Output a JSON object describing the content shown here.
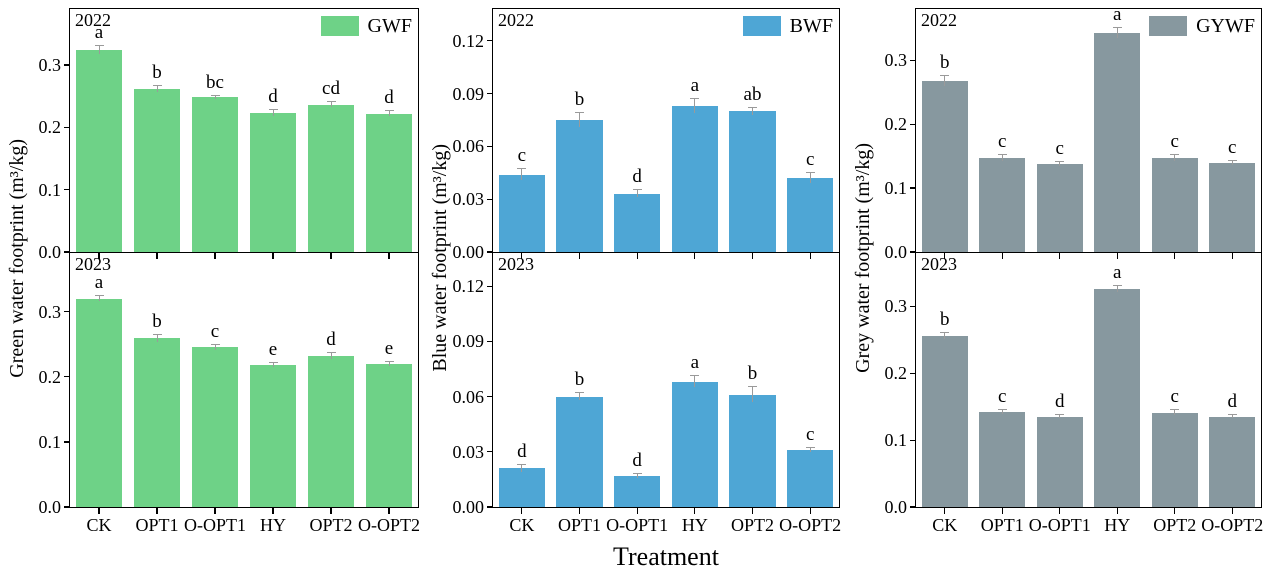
{
  "figure": {
    "xlabel": "Treatment",
    "categories": [
      "CK",
      "OPT1",
      "O-OPT1",
      "HY",
      "OPT2",
      "O-OPT2"
    ],
    "background": "#ffffff",
    "axis_color": "#000000",
    "error_bar_color": "#9a9a9a"
  },
  "chart_data": [
    {
      "type": "bar",
      "id": "green-water-footprint",
      "legend": "GWF",
      "color": "#6ed287",
      "ylabel": "Green water footprint (m³/kg)",
      "ylim": [
        0,
        0.39
      ],
      "grid": false,
      "legend_position": "top-right",
      "ytick_values": [
        0.0,
        0.1,
        0.2,
        0.3
      ],
      "ytick_labels": [
        "0.0",
        "0.1",
        "0.2",
        "0.3"
      ],
      "categories": [
        "CK",
        "OPT1",
        "O-OPT1",
        "HY",
        "OPT2",
        "O-OPT2"
      ],
      "panels": [
        {
          "year": "2022",
          "values": [
            0.324,
            0.262,
            0.248,
            0.223,
            0.236,
            0.222
          ],
          "errors": [
            0.006,
            0.005,
            0.003,
            0.005,
            0.004,
            0.004
          ],
          "letters": [
            "a",
            "b",
            "bc",
            "d",
            "cd",
            "d"
          ]
        },
        {
          "year": "2023",
          "values": [
            0.32,
            0.259,
            0.245,
            0.218,
            0.232,
            0.22
          ],
          "errors": [
            0.004,
            0.005,
            0.004,
            0.003,
            0.004,
            0.003
          ],
          "letters": [
            "a",
            "b",
            "c",
            "e",
            "d",
            "e"
          ]
        }
      ]
    },
    {
      "type": "bar",
      "id": "blue-water-footprint",
      "legend": "BWF",
      "color": "#4ea6d5",
      "ylabel": "Blue water footprint (m³/kg)",
      "ylim": [
        0,
        0.138
      ],
      "grid": false,
      "legend_position": "top-right",
      "ytick_values": [
        0.0,
        0.03,
        0.06,
        0.09,
        0.12
      ],
      "ytick_labels": [
        "0.00",
        "0.03",
        "0.06",
        "0.09",
        "0.12"
      ],
      "categories": [
        "CK",
        "OPT1",
        "O-OPT1",
        "HY",
        "OPT2",
        "O-OPT2"
      ],
      "panels": [
        {
          "year": "2022",
          "values": [
            0.044,
            0.075,
            0.033,
            0.083,
            0.08,
            0.042
          ],
          "errors": [
            0.003,
            0.004,
            0.002,
            0.004,
            0.002,
            0.003
          ],
          "letters": [
            "c",
            "b",
            "d",
            "a",
            "ab",
            "c"
          ]
        },
        {
          "year": "2023",
          "values": [
            0.021,
            0.06,
            0.017,
            0.068,
            0.061,
            0.031
          ],
          "errors": [
            0.002,
            0.002,
            0.001,
            0.003,
            0.004,
            0.001
          ],
          "letters": [
            "d",
            "b",
            "d",
            "a",
            "b",
            "c"
          ]
        }
      ]
    },
    {
      "type": "bar",
      "id": "grey-water-footprint",
      "legend": "GYWF",
      "color": "#87989f",
      "ylabel": "Grey water footprint (m³/kg)",
      "ylim": [
        0,
        0.38
      ],
      "grid": false,
      "legend_position": "top-right",
      "ytick_values": [
        0.0,
        0.1,
        0.2,
        0.3
      ],
      "ytick_labels": [
        "0.0",
        "0.1",
        "0.2",
        "0.3"
      ],
      "categories": [
        "CK",
        "OPT1",
        "O-OPT1",
        "HY",
        "OPT2",
        "O-OPT2"
      ],
      "panels": [
        {
          "year": "2022",
          "values": [
            0.268,
            0.147,
            0.138,
            0.343,
            0.147,
            0.139
          ],
          "errors": [
            0.008,
            0.004,
            0.003,
            0.008,
            0.004,
            0.003
          ],
          "letters": [
            "b",
            "c",
            "c",
            "a",
            "c",
            "c"
          ]
        },
        {
          "year": "2023",
          "values": [
            0.256,
            0.142,
            0.135,
            0.326,
            0.141,
            0.135
          ],
          "errors": [
            0.004,
            0.003,
            0.002,
            0.005,
            0.004,
            0.002
          ],
          "letters": [
            "b",
            "c",
            "d",
            "a",
            "c",
            "d"
          ]
        }
      ]
    }
  ]
}
